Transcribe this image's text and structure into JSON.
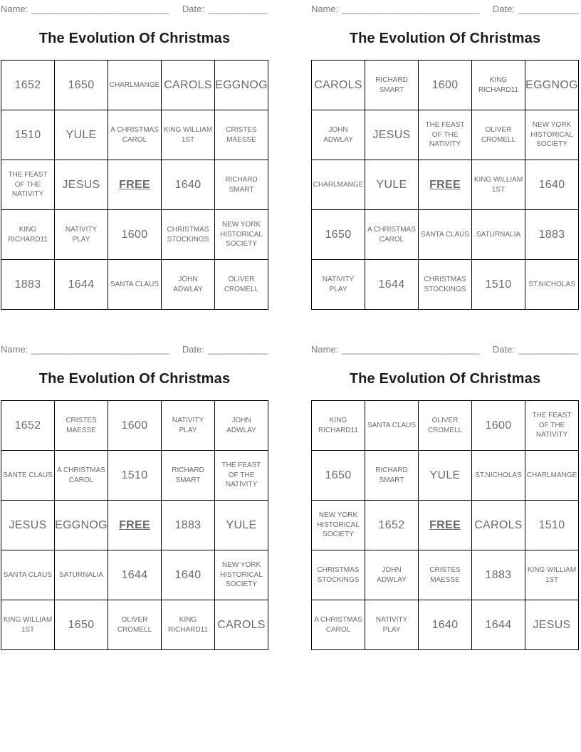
{
  "labels": {
    "name": "Name:",
    "name_line": "_________________________",
    "date": "Date:",
    "date_line": "___________"
  },
  "title": "The Evolution Of Christmas",
  "free_label": "FREE",
  "colors": {
    "cell_text": "#6b6b6b",
    "label_text": "#7b7b7b",
    "title_text": "#1c1c1c",
    "grid_border": "#000000",
    "background": "#ffffff"
  },
  "cards": [
    {
      "grid": [
        [
          "1652",
          "1650",
          "CHARLMANGE",
          "CAROLS",
          "EGGNOG"
        ],
        [
          "1510",
          "YULE",
          "A CHRISTMAS CAROL",
          "KING WILLIAM 1ST",
          "CRISTES MAESSE"
        ],
        [
          "THE FEAST OF THE NATIVITY",
          "JESUS",
          "FREE",
          "1640",
          "RICHARD SMART"
        ],
        [
          "KING RICHARD11",
          "NATIVITY PLAY",
          "1600",
          "CHRISTMAS STOCKINGS",
          "NEW YORK HISTORICAL SOCIETY"
        ],
        [
          "1883",
          "1644",
          "SANTA CLAUS",
          "JOHN ADWLAY",
          "OLIVER CROMELL"
        ]
      ]
    },
    {
      "grid": [
        [
          "CAROLS",
          "RICHARD SMART",
          "1600",
          "KING RICHARD11",
          "EGGNOG"
        ],
        [
          "JOHN ADWLAY",
          "JESUS",
          "THE FEAST OF THE NATIVITY",
          "OLIVER CROMELL",
          "NEW YORK HISTORICAL SOCIETY"
        ],
        [
          "CHARLMANGE",
          "YULE",
          "FREE",
          "KING WILLIAM 1ST",
          "1640"
        ],
        [
          "1650",
          "A CHRISTMAS CAROL",
          "SANTA CLAUS",
          "SATURNALIA",
          "1883"
        ],
        [
          "NATIVITY PLAY",
          "1644",
          "CHRISTMAS STOCKINGS",
          "1510",
          "ST.NICHOLAS"
        ]
      ]
    },
    {
      "grid": [
        [
          "1652",
          "CRISTES MAESSE",
          "1600",
          "NATIVITY PLAY",
          "JOHN ADWLAY"
        ],
        [
          "SANTE CLAUS",
          "A CHRISTMAS CAROL",
          "1510",
          "RICHARD SMART",
          "THE FEAST OF THE NATIVITY"
        ],
        [
          "JESUS",
          "EGGNOG",
          "FREE",
          "1883",
          "YULE"
        ],
        [
          "SANTA CLAUS",
          "SATURNALIA",
          "1644",
          "1640",
          "NEW YORK HISTORICAL SOCIETY"
        ],
        [
          "KING WILLIAM 1ST",
          "1650",
          "OLIVER CROMELL",
          "KING RICHARD11",
          "CAROLS"
        ]
      ]
    },
    {
      "grid": [
        [
          "KING RICHARD11",
          "SANTA CLAUS",
          "OLIVER CROMELL",
          "1600",
          "THE FEAST OF THE NATIVITY"
        ],
        [
          "1650",
          "RICHARD SMART",
          "YULE",
          "ST.NICHOLAS",
          "CHARLMANGE"
        ],
        [
          "NEW YORK HISTORICAL SOCIETY",
          "1652",
          "FREE",
          "CAROLS",
          "1510"
        ],
        [
          "CHRISTMAS STOCKINGS",
          "JOHN ADWLAY",
          "CRISTES MAESSE",
          "1883",
          "KING WILLIAM 1ST"
        ],
        [
          "A CHRISTMAS CAROL",
          "NATIVITY PLAY",
          "1640",
          "1644",
          "JESUS"
        ]
      ]
    }
  ]
}
